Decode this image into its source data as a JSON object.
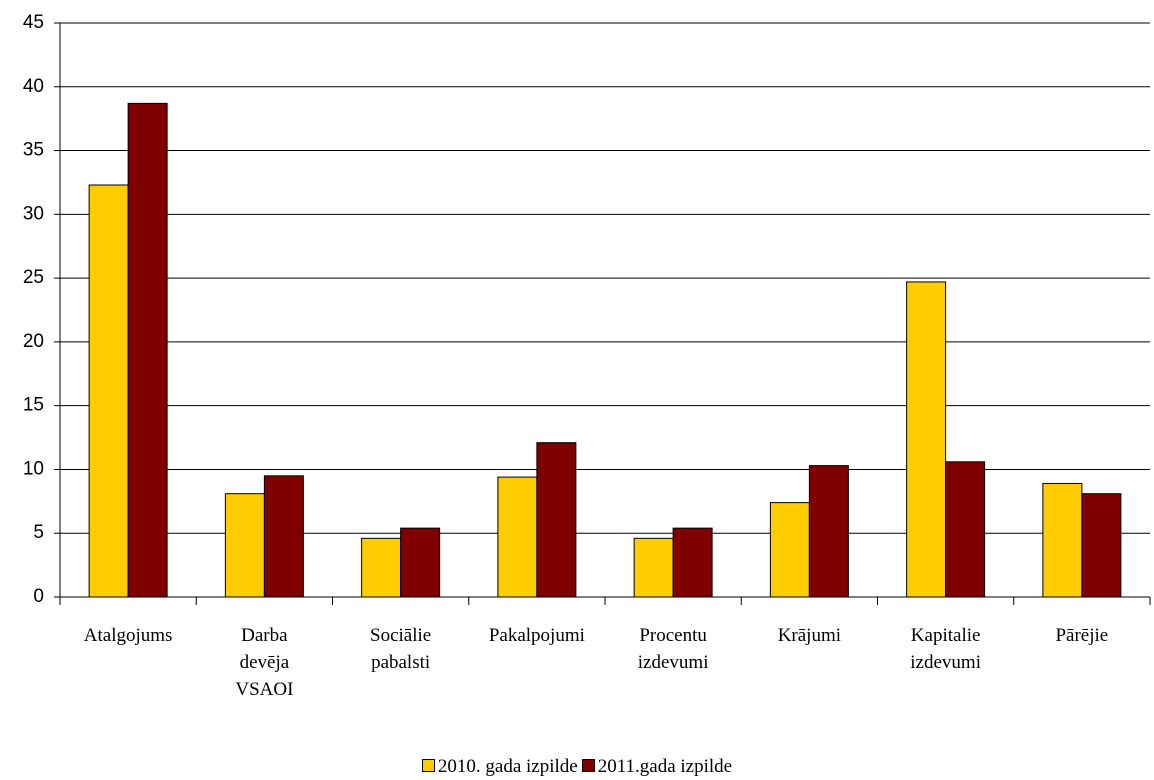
{
  "chart_data": {
    "type": "bar",
    "categories": [
      "Atalgojums",
      "Darba\ndevēja\nVSAOI",
      "Sociālie\npabalsti",
      "Pakalpojumi",
      "Procentu\nizdevumi",
      "Krājumi",
      "Kapitalie\nizdevumi",
      "Pārējie"
    ],
    "series": [
      {
        "name": "2010. gada izpilde",
        "color": "#ffcc00",
        "values": [
          32.3,
          8.1,
          4.6,
          9.4,
          4.6,
          7.4,
          24.7,
          8.9
        ]
      },
      {
        "name": "2011.gada izpilde",
        "color": "#800000",
        "values": [
          38.7,
          9.5,
          5.4,
          12.1,
          5.4,
          10.3,
          10.6,
          8.1
        ]
      }
    ],
    "ylim": [
      0,
      45
    ],
    "yticks": [
      0,
      5,
      10,
      15,
      20,
      25,
      30,
      35,
      40,
      45
    ],
    "grid": true,
    "legend": "bottom"
  }
}
